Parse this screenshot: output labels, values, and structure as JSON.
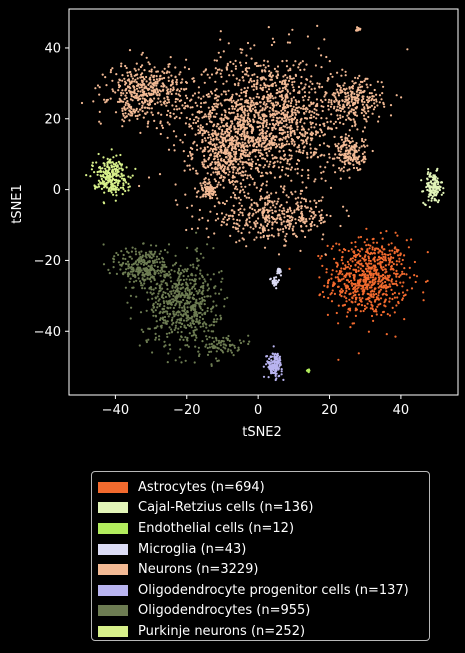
{
  "chart_data": {
    "type": "scatter",
    "title": "",
    "xlabel": "tSNE2",
    "ylabel": "tSNE1",
    "xlim": [
      -53,
      56
    ],
    "ylim": [
      -58,
      51
    ],
    "xticks": [
      -40,
      -20,
      0,
      20,
      40
    ],
    "yticks": [
      -40,
      -20,
      0,
      20,
      40
    ],
    "xtick_labels": [
      "−40",
      "−20",
      "0",
      "20",
      "40"
    ],
    "ytick_labels": [
      "−40",
      "−20",
      "0",
      "20",
      "40"
    ],
    "grid": false,
    "legend_position": "below",
    "series": [
      {
        "name": "Astrocytes (n=694)",
        "color": "#f26a2e",
        "n": 694,
        "clusters": [
          {
            "cx": 31,
            "cy": -25,
            "sx": 5.5,
            "sy": 5.5,
            "n": 694
          }
        ]
      },
      {
        "name": "Cajal-Retzius cells (n=136)",
        "color": "#e2f5b8",
        "n": 136,
        "clusters": [
          {
            "cx": 49,
            "cy": 0.5,
            "sx": 1.3,
            "sy": 2.2,
            "n": 136
          }
        ]
      },
      {
        "name": "Endothelial cells (n=12)",
        "color": "#b2ec5d",
        "n": 12,
        "clusters": [
          {
            "cx": 14,
            "cy": -51,
            "sx": 0.3,
            "sy": 0.3,
            "n": 12
          }
        ]
      },
      {
        "name": "Microglia (n=43)",
        "color": "#dcdcf5",
        "n": 43,
        "clusters": [
          {
            "cx": 4.5,
            "cy": -26,
            "sx": 0.6,
            "sy": 0.7,
            "n": 28
          },
          {
            "cx": 6,
            "cy": -23,
            "sx": 0.3,
            "sy": 0.6,
            "n": 15
          }
        ]
      },
      {
        "name": "Neurons (n=3229)",
        "color": "#f2b994",
        "n": 3229,
        "clusters": [
          {
            "cx": 2,
            "cy": 20,
            "sx": 11,
            "sy": 9,
            "n": 1500
          },
          {
            "cx": -8,
            "cy": 10,
            "sx": 5,
            "sy": 5,
            "n": 400
          },
          {
            "cx": 4,
            "cy": -8,
            "sx": 9,
            "sy": 3,
            "n": 400
          },
          {
            "cx": -31,
            "cy": 28,
            "sx": 5.5,
            "sy": 3.8,
            "n": 420
          },
          {
            "cx": 26,
            "cy": 10,
            "sx": 2,
            "sy": 2.5,
            "n": 160
          },
          {
            "cx": 27,
            "cy": 25,
            "sx": 4,
            "sy": 3,
            "n": 230
          },
          {
            "cx": -14,
            "cy": 0,
            "sx": 1.2,
            "sy": 1.2,
            "n": 70
          },
          {
            "cx": 28,
            "cy": 45,
            "sx": 0.4,
            "sy": 0.6,
            "n": 12
          },
          {
            "cx": -36,
            "cy": 22,
            "sx": 1.2,
            "sy": 1.2,
            "n": 37
          }
        ]
      },
      {
        "name": "Oligodendrocyte progenitor cells (n=137)",
        "color": "#b9b4f0",
        "n": 137,
        "clusters": [
          {
            "cx": 4.5,
            "cy": -49.5,
            "sx": 1.1,
            "sy": 1.7,
            "n": 137
          }
        ]
      },
      {
        "name": "Oligodendrocytes (n=955)",
        "color": "#6d7c52",
        "n": 955,
        "clusters": [
          {
            "cx": -21,
            "cy": -32,
            "sx": 5,
            "sy": 6,
            "n": 600
          },
          {
            "cx": -32,
            "cy": -22,
            "sx": 3.5,
            "sy": 3,
            "n": 280
          },
          {
            "cx": -11,
            "cy": -44,
            "sx": 3,
            "sy": 1.5,
            "n": 75
          }
        ]
      },
      {
        "name": "Purkinje neurons (n=252)",
        "color": "#d7f08a",
        "n": 252,
        "clusters": [
          {
            "cx": -41.5,
            "cy": 4,
            "sx": 2.4,
            "sy": 2.5,
            "n": 252
          }
        ]
      }
    ]
  }
}
